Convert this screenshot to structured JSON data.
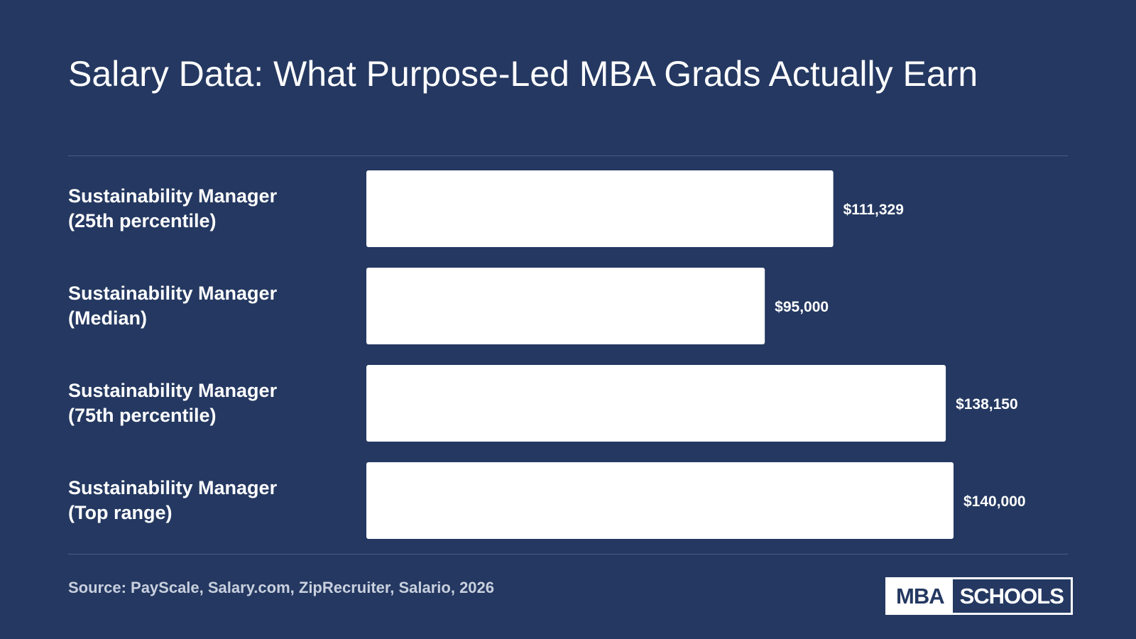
{
  "title": "Salary Data: What Purpose-Led MBA Grads Actually Earn",
  "source": "Source: PayScale, Salary.com, ZipRecruiter, Salario, 2026",
  "logo": {
    "left_text": "MBA",
    "right_text": "SCHOOLS"
  },
  "colors": {
    "background": "#243861",
    "bar": "#ffffff",
    "text": "#ffffff",
    "source_text": "#c9d0de"
  },
  "chart_data": {
    "type": "bar",
    "orientation": "horizontal",
    "categories": [
      [
        "Sustainability Manager",
        "(25th percentile)"
      ],
      [
        "Sustainability Manager",
        "(Median)"
      ],
      [
        "Sustainability Manager",
        "(75th percentile)"
      ],
      [
        "Sustainability Manager",
        "(Top range)"
      ]
    ],
    "values": [
      111329,
      95000,
      138150,
      140000
    ],
    "value_labels": [
      "$111,329",
      "$95,000",
      "$138,150",
      "$140,000"
    ],
    "xlim": [
      0,
      140000
    ],
    "grid": false,
    "legend": "none"
  }
}
